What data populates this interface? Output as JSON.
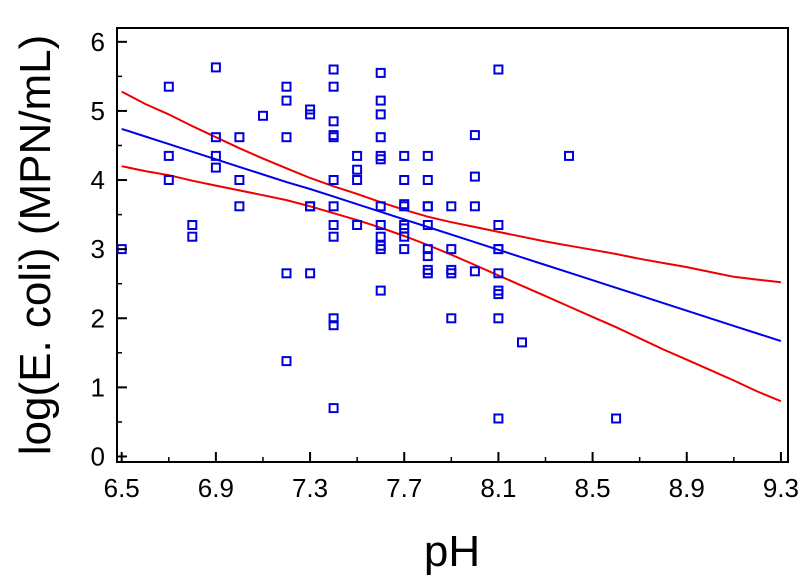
{
  "chart_data": {
    "type": "scatter",
    "title": "",
    "xlabel": "pH",
    "ylabel": "log(E. coli) (MPN/mL)",
    "xlim": [
      6.5,
      9.3
    ],
    "ylim": [
      0,
      6
    ],
    "xticks": [
      "6.5",
      "6.9",
      "7.3",
      "7.7",
      "8.1",
      "8.5",
      "8.9",
      "9.3"
    ],
    "yticks": [
      "0",
      "1",
      "2",
      "3",
      "4",
      "5",
      "6"
    ],
    "grid": false,
    "legend": "none",
    "colors": {
      "points": "#0000dd",
      "fit": "#0000ee",
      "bands": "#ee0000",
      "axis": "#000000"
    },
    "scatter": {
      "x": [
        6.5,
        6.7,
        6.7,
        6.7,
        6.8,
        6.8,
        6.9,
        6.9,
        6.9,
        6.9,
        7.0,
        7.0,
        7.0,
        7.1,
        7.2,
        7.2,
        7.2,
        7.2,
        7.2,
        7.3,
        7.3,
        7.3,
        7.3,
        7.3,
        7.4,
        7.4,
        7.4,
        7.4,
        7.4,
        7.4,
        7.4,
        7.4,
        7.4,
        7.4,
        7.4,
        7.4,
        7.5,
        7.5,
        7.5,
        7.5,
        7.6,
        7.6,
        7.6,
        7.6,
        7.6,
        7.6,
        7.6,
        7.6,
        7.6,
        7.6,
        7.6,
        7.6,
        7.7,
        7.7,
        7.7,
        7.7,
        7.7,
        7.7,
        7.7,
        7.7,
        7.8,
        7.8,
        7.8,
        7.8,
        7.8,
        7.8,
        7.8,
        7.8,
        7.8,
        7.9,
        7.9,
        7.9,
        7.9,
        7.9,
        8.0,
        8.0,
        8.0,
        8.0,
        8.1,
        8.1,
        8.1,
        8.1,
        8.1,
        8.1,
        8.1,
        8.1,
        8.1,
        8.2,
        8.4,
        8.6
      ],
      "y": [
        3.0,
        5.35,
        4.35,
        4.0,
        3.35,
        3.18,
        5.63,
        4.62,
        4.35,
        4.18,
        4.62,
        4.0,
        3.62,
        4.93,
        5.35,
        5.15,
        4.62,
        2.65,
        1.38,
        5.02,
        4.95,
        3.62,
        3.62,
        2.65,
        5.6,
        5.35,
        4.85,
        4.65,
        4.62,
        4.0,
        3.62,
        3.35,
        3.18,
        2.0,
        1.9,
        0.7,
        4.35,
        4.15,
        4.0,
        3.35,
        5.55,
        5.15,
        4.95,
        4.62,
        4.35,
        4.3,
        3.62,
        3.35,
        3.18,
        3.0,
        2.4,
        3.05,
        4.35,
        4.0,
        3.65,
        3.62,
        3.35,
        3.3,
        3.18,
        3.0,
        4.35,
        4.0,
        3.62,
        3.35,
        3.0,
        2.9,
        2.7,
        2.65,
        3.62,
        3.62,
        3.0,
        2.7,
        2.65,
        2.0,
        4.65,
        4.05,
        3.62,
        2.68,
        5.6,
        3.35,
        3.0,
        2.65,
        2.4,
        2.35,
        2.0,
        0.55,
        3.0,
        1.65,
        4.35,
        0.55
      ]
    },
    "series": [
      {
        "x": [
          6.5,
          6.6,
          6.7,
          6.8,
          6.9,
          7.0,
          7.1,
          7.2,
          7.3,
          7.4,
          7.5,
          7.6,
          7.7,
          7.8,
          7.9,
          8.0,
          8.1,
          8.2,
          8.3,
          8.4,
          8.5,
          8.6,
          8.7,
          8.8,
          8.9,
          9.0,
          9.1,
          9.2,
          9.3
        ],
        "values": [
          4.74,
          4.63,
          4.52,
          4.41,
          4.3,
          4.19,
          4.08,
          3.97,
          3.87,
          3.76,
          3.65,
          3.54,
          3.43,
          3.32,
          3.21,
          3.1,
          2.99,
          2.88,
          2.77,
          2.66,
          2.55,
          2.44,
          2.33,
          2.22,
          2.11,
          2.0,
          1.89,
          1.78,
          1.67
        ]
      },
      {
        "x": [
          6.5,
          6.6,
          6.7,
          6.8,
          6.9,
          7.0,
          7.1,
          7.2,
          7.3,
          7.4,
          7.5,
          7.6,
          7.7,
          7.8,
          7.9,
          8.0,
          8.1,
          8.2,
          8.3,
          8.4,
          8.5,
          8.6,
          8.7,
          8.8,
          8.9,
          9.0,
          9.1,
          9.2,
          9.3
        ],
        "values": [
          5.28,
          5.1,
          4.95,
          4.78,
          4.62,
          4.46,
          4.31,
          4.17,
          4.03,
          3.91,
          3.8,
          3.68,
          3.57,
          3.47,
          3.39,
          3.32,
          3.25,
          3.18,
          3.11,
          3.05,
          2.99,
          2.93,
          2.86,
          2.8,
          2.74,
          2.67,
          2.6,
          2.56,
          2.52
        ]
      },
      {
        "x": [
          6.5,
          6.6,
          6.7,
          6.8,
          6.9,
          7.0,
          7.1,
          7.2,
          7.3,
          7.4,
          7.5,
          7.6,
          7.7,
          7.8,
          7.9,
          8.0,
          8.1,
          8.2,
          8.3,
          8.4,
          8.5,
          8.6,
          8.7,
          8.8,
          8.9,
          9.0,
          9.1,
          9.2,
          9.3
        ],
        "values": [
          4.2,
          4.13,
          4.07,
          3.99,
          3.92,
          3.85,
          3.78,
          3.71,
          3.62,
          3.52,
          3.42,
          3.31,
          3.19,
          3.06,
          2.92,
          2.77,
          2.62,
          2.47,
          2.32,
          2.17,
          2.02,
          1.87,
          1.71,
          1.55,
          1.4,
          1.25,
          1.1,
          0.94,
          0.8
        ]
      }
    ]
  }
}
